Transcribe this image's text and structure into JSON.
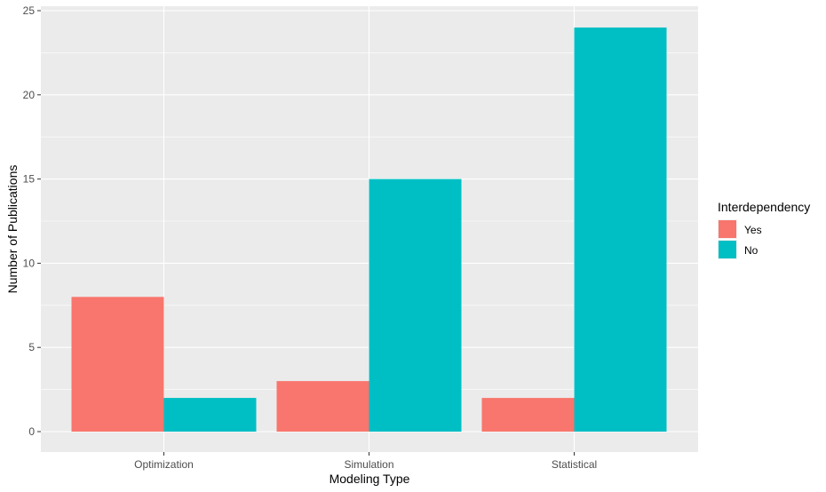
{
  "chart_data": {
    "type": "bar",
    "title": "",
    "xlabel": "Modeling Type",
    "ylabel": "Number of Publications",
    "categories": [
      "Optimization",
      "Simulation",
      "Statistical"
    ],
    "series": [
      {
        "name": "Yes",
        "values": [
          8,
          3,
          2
        ],
        "color": "#F8766D"
      },
      {
        "name": "No",
        "values": [
          2,
          15,
          24
        ],
        "color": "#00BFC4"
      }
    ],
    "ylim": [
      0,
      25
    ],
    "yticks": [
      0,
      5,
      10,
      15,
      20,
      25
    ],
    "grid": true,
    "legend": {
      "title": "Interdependency",
      "position": "right"
    },
    "panel_background": "#EBEBEB",
    "grid_color": "#FFFFFF"
  }
}
